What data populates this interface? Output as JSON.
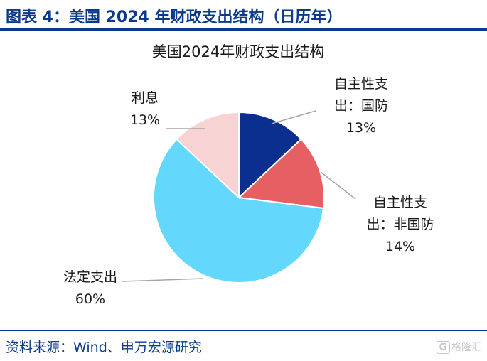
{
  "header": {
    "title": "图表 4：美国 2024 年财政支出结构（日历年）"
  },
  "footer": {
    "source": "资料来源：Wind、申万宏源研究"
  },
  "watermark": {
    "text": "格隆汇"
  },
  "chart_data": {
    "type": "pie",
    "title": "美国2024年财政支出结构",
    "slices": [
      {
        "name": "自主性支出：国防",
        "name_lines": [
          "自主性支",
          "出：国防"
        ],
        "value": 13,
        "label": "13%",
        "color": "#0a2f8f"
      },
      {
        "name": "自主性支出：非国防",
        "name_lines": [
          "自主性支",
          "出：非国防"
        ],
        "value": 14,
        "label": "14%",
        "color": "#e65f62"
      },
      {
        "name": "法定支出",
        "name_lines": [
          "法定支出"
        ],
        "value": 60,
        "label": "60%",
        "color": "#63d7fc"
      },
      {
        "name": "利息",
        "name_lines": [
          "利息"
        ],
        "value": 13,
        "label": "13%",
        "color": "#f7d3d4"
      }
    ],
    "start_angle_deg": 0,
    "direction": "clockwise",
    "legend": "none",
    "data_labels": "outside with leader lines"
  }
}
